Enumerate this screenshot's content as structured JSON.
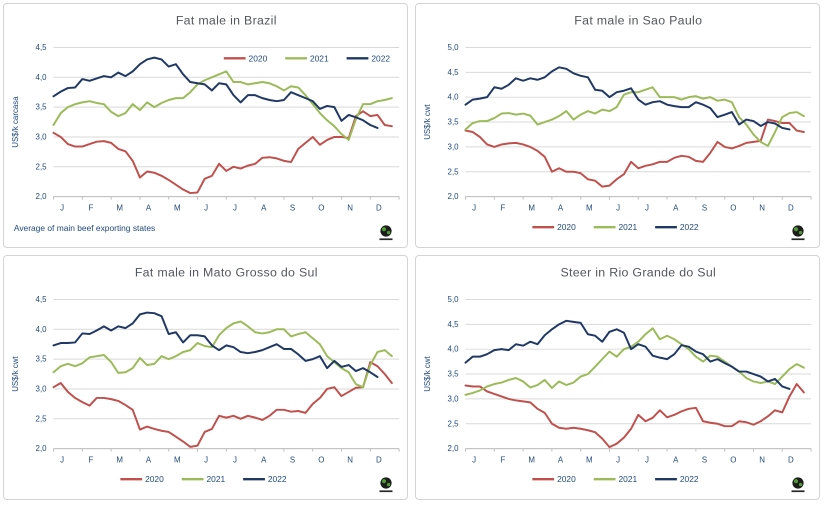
{
  "page": {
    "background": "#ffffff"
  },
  "colors": {
    "red": "#C0504D",
    "green": "#9BBB59",
    "navy": "#1F3864",
    "grid": "#D9D9D9",
    "axis": "#BFBFBF",
    "axis_text": "#1F497D",
    "title_text": "#54575d"
  },
  "legend": {
    "items": [
      {
        "label": "2020",
        "color": "red"
      },
      {
        "label": "2021",
        "color": "green"
      },
      {
        "label": "2022",
        "color": "navy"
      }
    ]
  },
  "logo": {
    "name": "beef-report-logo"
  },
  "chart_data": [
    {
      "type": "line",
      "title": "Fat male in Brazil",
      "ylabel": "US$/k carcasa",
      "ylim": [
        2.0,
        4.5
      ],
      "ytick_step": 0.5,
      "decimal_style": "comma",
      "grid": true,
      "legend_position": "inside-top-right",
      "footnote": "Average  of main beef exporting states",
      "categories": [
        "J",
        "F",
        "M",
        "A",
        "M",
        "J",
        "J",
        "A",
        "S",
        "O",
        "N",
        "D"
      ],
      "series": [
        {
          "name": "2020",
          "color": "red",
          "values": [
            3.07,
            3.0,
            2.88,
            2.84,
            2.84,
            2.88,
            2.92,
            2.93,
            2.9,
            2.8,
            2.76,
            2.6,
            2.32,
            2.42,
            2.4,
            2.35,
            2.28,
            2.2,
            2.12,
            2.06,
            2.07,
            2.3,
            2.35,
            2.55,
            2.43,
            2.5,
            2.47,
            2.52,
            2.55,
            2.65,
            2.66,
            2.64,
            2.6,
            2.58,
            2.8,
            2.9,
            3.0,
            2.87,
            2.95,
            3.0,
            3.0,
            2.98,
            3.35,
            3.43,
            3.35,
            3.37,
            3.2,
            3.18
          ]
        },
        {
          "name": "2021",
          "color": "green",
          "values": [
            3.2,
            3.4,
            3.5,
            3.55,
            3.58,
            3.6,
            3.57,
            3.55,
            3.42,
            3.35,
            3.4,
            3.55,
            3.45,
            3.58,
            3.5,
            3.57,
            3.62,
            3.65,
            3.65,
            3.75,
            3.88,
            3.95,
            4.0,
            4.05,
            4.1,
            3.92,
            3.92,
            3.88,
            3.9,
            3.92,
            3.9,
            3.85,
            3.78,
            3.85,
            3.83,
            3.7,
            3.55,
            3.4,
            3.28,
            3.18,
            3.05,
            2.95,
            3.3,
            3.55,
            3.55,
            3.6,
            3.62,
            3.65
          ]
        },
        {
          "name": "2022",
          "color": "navy",
          "values": [
            3.68,
            3.76,
            3.82,
            3.83,
            3.97,
            3.94,
            3.98,
            4.02,
            4.0,
            4.08,
            4.02,
            4.1,
            4.22,
            4.3,
            4.33,
            4.3,
            4.18,
            4.22,
            4.05,
            3.92,
            3.9,
            3.88,
            3.78,
            3.9,
            3.88,
            3.7,
            3.58,
            3.7,
            3.7,
            3.65,
            3.62,
            3.6,
            3.62,
            3.75,
            3.7,
            3.65,
            3.6,
            3.47,
            3.52,
            3.5,
            3.27,
            3.37,
            3.33,
            3.28,
            3.2,
            3.15
          ]
        }
      ]
    },
    {
      "type": "line",
      "title": "Fat male in Sao Paulo",
      "ylabel": "US$/k cwt",
      "ylim": [
        2.0,
        5.0
      ],
      "ytick_step": 0.5,
      "decimal_style": "comma",
      "grid": true,
      "legend_position": "bottom",
      "footnote": "",
      "categories": [
        "J",
        "F",
        "M",
        "A",
        "M",
        "J",
        "J",
        "A",
        "S",
        "O",
        "N",
        "D"
      ],
      "series": [
        {
          "name": "2020",
          "color": "red",
          "values": [
            3.33,
            3.3,
            3.2,
            3.05,
            3.0,
            3.05,
            3.07,
            3.08,
            3.05,
            3.0,
            2.92,
            2.8,
            2.5,
            2.57,
            2.5,
            2.5,
            2.47,
            2.35,
            2.32,
            2.2,
            2.22,
            2.35,
            2.45,
            2.7,
            2.57,
            2.62,
            2.65,
            2.7,
            2.7,
            2.78,
            2.82,
            2.8,
            2.72,
            2.7,
            2.88,
            3.1,
            3.0,
            2.97,
            3.02,
            3.08,
            3.1,
            3.12,
            3.55,
            3.52,
            3.48,
            3.48,
            3.33,
            3.3
          ]
        },
        {
          "name": "2021",
          "color": "green",
          "values": [
            3.35,
            3.48,
            3.52,
            3.52,
            3.58,
            3.67,
            3.68,
            3.65,
            3.67,
            3.63,
            3.45,
            3.5,
            3.55,
            3.62,
            3.72,
            3.55,
            3.65,
            3.72,
            3.67,
            3.75,
            3.72,
            3.8,
            4.05,
            4.1,
            4.1,
            4.15,
            4.2,
            4.0,
            4.0,
            4.0,
            3.95,
            4.0,
            4.02,
            3.97,
            4.0,
            3.93,
            3.95,
            3.9,
            3.6,
            3.45,
            3.25,
            3.1,
            3.02,
            3.3,
            3.6,
            3.68,
            3.7,
            3.62
          ]
        },
        {
          "name": "2022",
          "color": "navy",
          "values": [
            3.85,
            3.95,
            3.97,
            4.0,
            4.2,
            4.17,
            4.25,
            4.38,
            4.33,
            4.38,
            4.35,
            4.4,
            4.52,
            4.6,
            4.57,
            4.48,
            4.43,
            4.4,
            4.15,
            4.13,
            4.0,
            4.1,
            4.13,
            4.18,
            3.95,
            3.85,
            3.9,
            3.92,
            3.85,
            3.82,
            3.8,
            3.8,
            3.9,
            3.85,
            3.78,
            3.6,
            3.65,
            3.7,
            3.45,
            3.55,
            3.52,
            3.42,
            3.5,
            3.47,
            3.38,
            3.35
          ]
        }
      ]
    },
    {
      "type": "line",
      "title": "Fat male in Mato Grosso do Sul",
      "ylabel": "US$/k cwt",
      "ylim": [
        2.0,
        4.5
      ],
      "ytick_step": 0.5,
      "decimal_style": "comma",
      "grid": true,
      "legend_position": "bottom",
      "footnote": "",
      "categories": [
        "J",
        "F",
        "M",
        "A",
        "M",
        "J",
        "J",
        "A",
        "S",
        "O",
        "N",
        "D"
      ],
      "series": [
        {
          "name": "2020",
          "color": "red",
          "values": [
            3.03,
            3.1,
            2.95,
            2.85,
            2.78,
            2.72,
            2.85,
            2.85,
            2.83,
            2.8,
            2.73,
            2.65,
            2.32,
            2.37,
            2.33,
            2.3,
            2.28,
            2.2,
            2.12,
            2.03,
            2.05,
            2.28,
            2.33,
            2.55,
            2.52,
            2.55,
            2.5,
            2.55,
            2.52,
            2.48,
            2.55,
            2.65,
            2.65,
            2.62,
            2.63,
            2.6,
            2.75,
            2.85,
            3.0,
            3.03,
            2.88,
            2.95,
            3.02,
            3.03,
            3.45,
            3.38,
            3.25,
            3.1
          ]
        },
        {
          "name": "2021",
          "color": "green",
          "values": [
            3.28,
            3.38,
            3.42,
            3.38,
            3.43,
            3.53,
            3.55,
            3.57,
            3.45,
            3.27,
            3.28,
            3.35,
            3.52,
            3.4,
            3.42,
            3.55,
            3.5,
            3.55,
            3.62,
            3.65,
            3.77,
            3.72,
            3.7,
            3.9,
            4.02,
            4.1,
            4.13,
            4.05,
            3.95,
            3.93,
            3.95,
            4.0,
            4.0,
            3.88,
            3.92,
            3.95,
            3.85,
            3.75,
            3.55,
            3.45,
            3.35,
            3.28,
            3.08,
            3.03,
            3.4,
            3.62,
            3.65,
            3.55
          ]
        },
        {
          "name": "2022",
          "color": "navy",
          "values": [
            3.73,
            3.77,
            3.77,
            3.78,
            3.93,
            3.92,
            3.98,
            4.05,
            3.98,
            4.05,
            4.02,
            4.1,
            4.25,
            4.28,
            4.27,
            4.22,
            3.92,
            3.95,
            3.78,
            3.9,
            3.9,
            3.88,
            3.73,
            3.65,
            3.73,
            3.7,
            3.62,
            3.6,
            3.62,
            3.65,
            3.7,
            3.75,
            3.67,
            3.67,
            3.58,
            3.47,
            3.5,
            3.55,
            3.35,
            3.47,
            3.37,
            3.4,
            3.3,
            3.35,
            3.28,
            3.2
          ]
        }
      ]
    },
    {
      "type": "line",
      "title": "Steer  in Rio Grande do Sul",
      "ylabel": "US$/k cwt",
      "ylim": [
        2.0,
        5.0
      ],
      "ytick_step": 0.5,
      "decimal_style": "comma",
      "grid": true,
      "legend_position": "bottom",
      "footnote": "",
      "categories": [
        "J",
        "F",
        "M",
        "A",
        "M",
        "J",
        "J",
        "A",
        "S",
        "O",
        "N",
        "D"
      ],
      "series": [
        {
          "name": "2020",
          "color": "red",
          "values": [
            3.27,
            3.25,
            3.25,
            3.15,
            3.1,
            3.05,
            3.0,
            2.97,
            2.95,
            2.93,
            2.8,
            2.72,
            2.5,
            2.42,
            2.4,
            2.42,
            2.4,
            2.37,
            2.33,
            2.2,
            2.03,
            2.1,
            2.22,
            2.4,
            2.68,
            2.55,
            2.62,
            2.77,
            2.63,
            2.68,
            2.75,
            2.8,
            2.82,
            2.55,
            2.52,
            2.5,
            2.45,
            2.45,
            2.55,
            2.53,
            2.48,
            2.55,
            2.65,
            2.77,
            2.73,
            3.05,
            3.3,
            3.13
          ]
        },
        {
          "name": "2021",
          "color": "green",
          "values": [
            3.08,
            3.12,
            3.17,
            3.25,
            3.3,
            3.33,
            3.38,
            3.42,
            3.35,
            3.23,
            3.28,
            3.38,
            3.22,
            3.35,
            3.28,
            3.33,
            3.45,
            3.5,
            3.65,
            3.8,
            3.95,
            3.85,
            4.0,
            4.05,
            4.15,
            4.3,
            4.42,
            4.2,
            4.27,
            4.2,
            4.1,
            4.0,
            3.85,
            3.75,
            3.87,
            3.85,
            3.75,
            3.65,
            3.55,
            3.42,
            3.35,
            3.32,
            3.35,
            3.3,
            3.45,
            3.6,
            3.7,
            3.63
          ]
        },
        {
          "name": "2022",
          "color": "navy",
          "values": [
            3.73,
            3.85,
            3.85,
            3.9,
            3.98,
            4.0,
            3.98,
            4.1,
            4.07,
            4.15,
            4.1,
            4.28,
            4.4,
            4.5,
            4.57,
            4.55,
            4.53,
            4.3,
            4.27,
            4.15,
            4.35,
            4.4,
            4.33,
            4.0,
            4.1,
            4.05,
            3.87,
            3.83,
            3.8,
            3.9,
            4.08,
            4.05,
            3.95,
            3.9,
            3.75,
            3.8,
            3.72,
            3.65,
            3.55,
            3.55,
            3.5,
            3.45,
            3.35,
            3.4,
            3.25,
            3.2
          ]
        }
      ]
    }
  ]
}
